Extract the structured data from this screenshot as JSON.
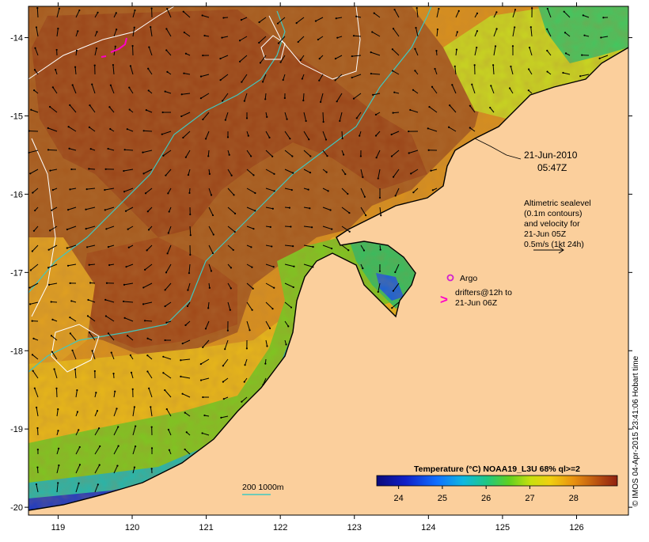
{
  "map": {
    "date": "21-Jun-2010",
    "time": "05:47Z",
    "lat_labels": [
      "-14",
      "-15",
      "-16",
      "-17",
      "-18",
      "-19",
      "-20"
    ],
    "lon_labels": [
      "119",
      "120",
      "121",
      "122",
      "123",
      "124",
      "125",
      "126"
    ],
    "lat_range": [
      -20.1,
      -13.6
    ],
    "lon_range": [
      118.6,
      126.7
    ]
  },
  "legend": {
    "altimetry_lines": [
      "Altimetric sealevel",
      "(0.1m contours)",
      "and velocity for",
      "21-Jun 05Z",
      "0.5m/s (1kt 24h)"
    ],
    "argo_label": "Argo",
    "drifter_marker": ">",
    "drifter_lines": [
      "drifters@12h to",
      "21-Jun 06Z"
    ],
    "isobath_label": "200  1000m"
  },
  "colorbar": {
    "title": "Temperature (°C) NOAA19_L3U 68% ql>=2",
    "ticks": [
      "24",
      "25",
      "26",
      "27",
      "28"
    ],
    "range": [
      23.5,
      29.0
    ]
  },
  "credit": "© IMOS 04-Apr-2015 23:41:06 Hobart time",
  "colors": {
    "land": "#fbcf9c",
    "sea_warm": "#a0521a",
    "sea_mid": "#d88a1a",
    "sea_cool": "#f0c020",
    "contour": "#ffffff",
    "isobath": "#40c8c0",
    "drifter": "#ff00c8",
    "argo": "#d020d0"
  }
}
